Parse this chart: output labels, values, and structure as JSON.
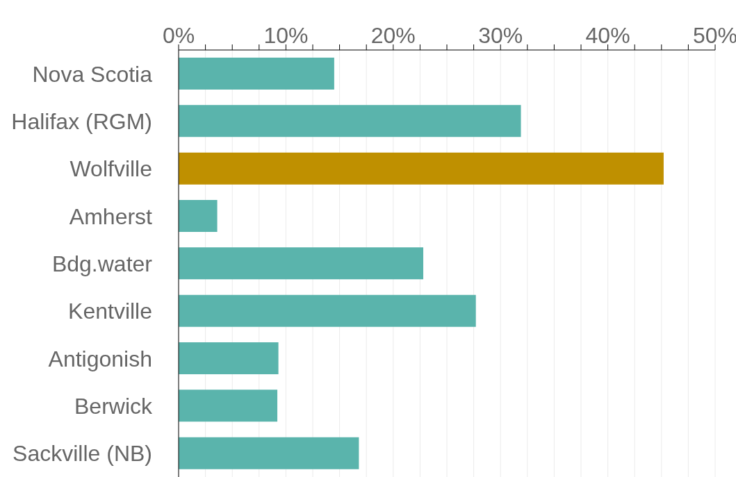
{
  "chart_data": {
    "type": "bar",
    "orientation": "horizontal",
    "categories": [
      "Nova Scotia",
      "Halifax (RGM)",
      "Wolfville",
      "Amherst",
      "Bdg.water",
      "Kentville",
      "Antigonish",
      "Berwick",
      "Sackville (NB)"
    ],
    "values": [
      14.5,
      31.9,
      45.2,
      3.6,
      22.8,
      27.7,
      9.3,
      9.2,
      16.8
    ],
    "colors": [
      "#5ab4ac",
      "#5ab4ac",
      "#bf9000",
      "#5ab4ac",
      "#5ab4ac",
      "#5ab4ac",
      "#5ab4ac",
      "#5ab4ac",
      "#5ab4ac"
    ],
    "xlim": [
      0,
      50
    ],
    "xticks": [
      {
        "value": 0,
        "label": "0%"
      },
      {
        "value": 2.5,
        "label": null
      },
      {
        "value": 5,
        "label": null
      },
      {
        "value": 7.5,
        "label": null
      },
      {
        "value": 10,
        "label": "10%"
      },
      {
        "value": 12.5,
        "label": null
      },
      {
        "value": 15,
        "label": null
      },
      {
        "value": 17.5,
        "label": null
      },
      {
        "value": 20,
        "label": "20%"
      },
      {
        "value": 22.5,
        "label": null
      },
      {
        "value": 25,
        "label": null
      },
      {
        "value": 27.5,
        "label": null
      },
      {
        "value": 30,
        "label": "30%"
      },
      {
        "value": 32.5,
        "label": null
      },
      {
        "value": 35,
        "label": null
      },
      {
        "value": 37.5,
        "label": null
      },
      {
        "value": 40,
        "label": "40%"
      },
      {
        "value": 42.5,
        "label": null
      },
      {
        "value": 45,
        "label": null
      },
      {
        "value": 47.5,
        "label": null
      },
      {
        "value": 50,
        "label": "50%"
      }
    ],
    "grid": "x",
    "legend": false
  }
}
